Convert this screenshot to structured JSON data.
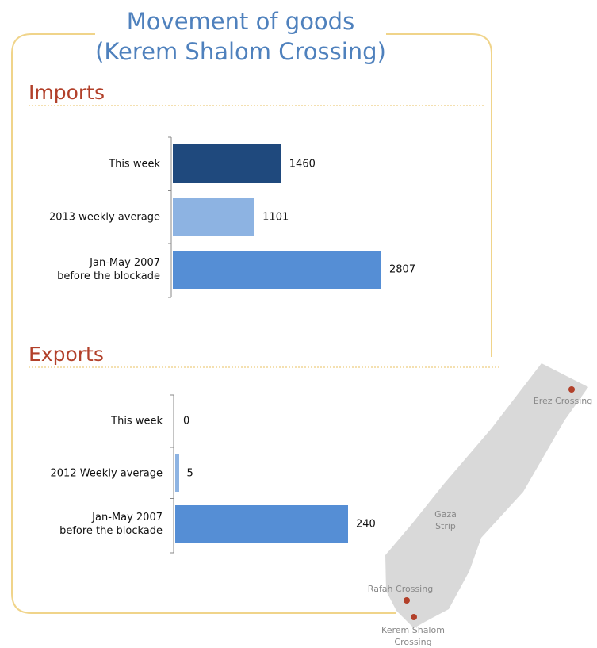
{
  "title": "Movement of goods\n(Kerem Shalom Crossing)",
  "chart_data": [
    {
      "type": "bar",
      "title": "Imports",
      "categories": [
        "This week",
        "2013 weekly average",
        "Jan-May 2007\nbefore the blockade"
      ],
      "values": [
        1460,
        1101,
        2807
      ],
      "colors": [
        "#1f497d",
        "#8db3e2",
        "#558ed5"
      ]
    },
    {
      "type": "bar",
      "title": "Exports",
      "categories": [
        "This week",
        "2012 Weekly average",
        "Jan-May 2007\nbefore the blockade"
      ],
      "values": [
        0,
        5,
        240
      ],
      "colors": [
        "#1f497d",
        "#8db3e2",
        "#558ed5"
      ]
    }
  ],
  "map": {
    "labels": [
      "Erez Crossing",
      "Gaza\nStrip",
      "Rafah Crossing",
      "Kerem Shalom\nCrossing"
    ]
  }
}
